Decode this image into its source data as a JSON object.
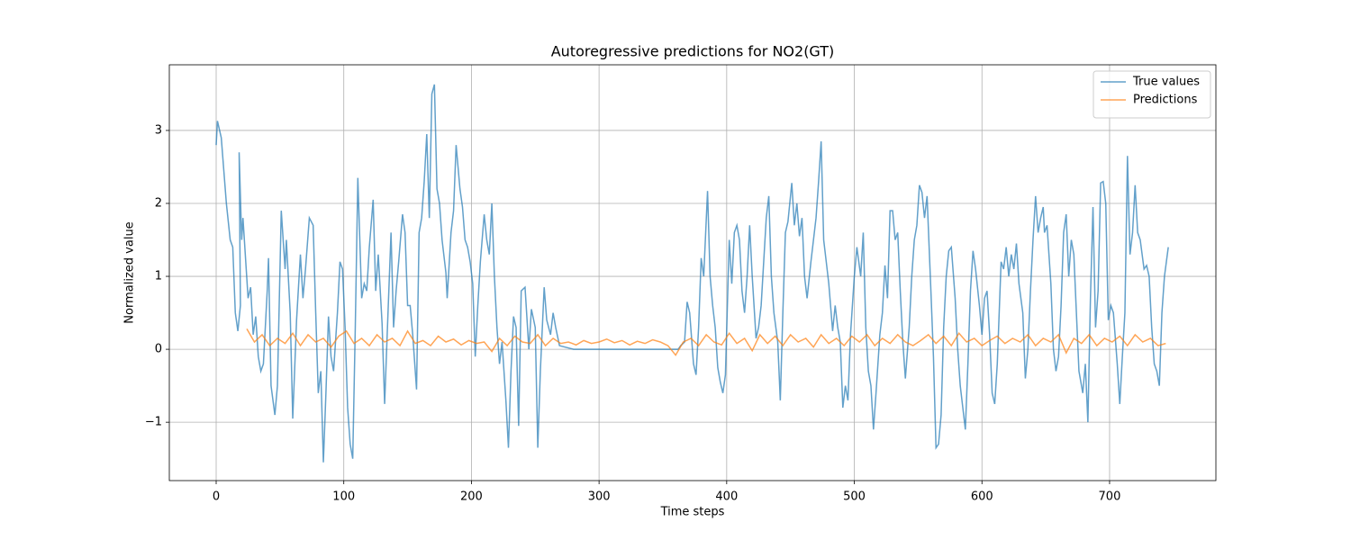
{
  "chart_data": {
    "type": "line",
    "title": "Autoregressive predictions for NO2(GT)",
    "x_label": "Time steps",
    "y_label": "Normalized value",
    "xlim": [
      -36.7,
      783.3
    ],
    "ylim": [
      -1.8,
      3.9
    ],
    "xticks": [
      0,
      100,
      200,
      300,
      400,
      500,
      600,
      700
    ],
    "yticks": [
      {
        "value": -1,
        "label": "−1"
      },
      0,
      1,
      2,
      3
    ],
    "grid": true,
    "legend": "upper right",
    "series": [
      {
        "name": "True values",
        "color": "#1f77b4",
        "x": [
          0,
          1,
          4,
          8,
          11,
          13,
          15,
          17,
          19,
          18,
          20,
          21,
          25,
          27,
          29,
          31,
          33,
          35,
          37,
          40,
          41,
          43,
          46,
          48,
          51,
          54,
          55,
          58,
          60,
          63,
          66,
          68,
          70,
          73,
          76,
          78,
          80,
          82,
          84,
          86,
          88,
          90,
          92,
          95,
          97,
          99,
          101,
          103,
          105,
          107,
          109,
          111,
          114,
          116,
          118,
          120,
          123,
          125,
          127,
          130,
          132,
          134,
          137,
          139,
          141,
          143,
          146,
          148,
          150,
          152,
          154,
          157,
          159,
          161,
          163,
          165,
          167,
          169,
          171,
          173,
          175,
          177,
          180,
          181,
          184,
          186,
          188,
          191,
          193,
          195,
          197,
          199,
          201,
          203,
          205,
          207,
          210,
          212,
          214,
          216,
          218,
          220,
          222,
          224,
          227,
          229,
          231,
          233,
          235,
          237,
          239,
          242,
          245,
          247,
          250,
          252,
          254,
          257,
          259,
          262,
          264,
          266,
          269,
          280,
          300,
          320,
          340,
          362,
          364,
          367,
          369,
          371,
          374,
          376,
          378,
          380,
          382,
          385,
          387,
          389,
          391,
          393,
          395,
          397,
          399,
          402,
          404,
          406,
          408,
          410,
          412,
          414,
          416,
          418,
          420,
          423,
          425,
          427,
          429,
          431,
          433,
          435,
          437,
          440,
          442,
          444,
          446,
          448,
          451,
          453,
          455,
          457,
          459,
          461,
          463,
          466,
          468,
          470,
          472,
          474,
          476,
          478,
          480,
          483,
          485,
          487,
          489,
          491,
          493,
          495,
          497,
          500,
          502,
          505,
          507,
          509,
          511,
          513,
          515,
          517,
          520,
          522,
          524,
          526,
          528,
          530,
          532,
          534,
          536,
          538,
          540,
          543,
          545,
          547,
          549,
          551,
          553,
          555,
          557,
          560,
          562,
          564,
          566,
          568,
          570,
          572,
          574,
          576,
          579,
          581,
          583,
          585,
          587,
          589,
          591,
          593,
          595,
          598,
          600,
          602,
          604,
          606,
          608,
          610,
          612,
          615,
          617,
          619,
          621,
          623,
          625,
          627,
          629,
          632,
          634,
          636,
          638,
          640,
          642,
          644,
          646,
          648,
          649,
          651,
          654,
          656,
          658,
          660,
          662,
          664,
          666,
          668,
          670,
          672,
          674,
          676,
          679,
          681,
          683,
          685,
          687,
          689,
          691,
          693,
          695,
          697,
          699,
          701,
          703,
          706,
          708,
          710,
          712,
          714,
          716,
          718,
          720,
          722,
          724,
          727,
          729,
          731,
          733,
          735,
          737,
          739,
          741,
          743,
          746
        ],
        "values": [
          2.8,
          3.13,
          2.9,
          2.0,
          1.5,
          1.4,
          0.5,
          0.25,
          0.6,
          2.7,
          1.5,
          1.8,
          0.7,
          0.85,
          0.2,
          0.45,
          -0.1,
          -0.3,
          -0.2,
          0.8,
          1.25,
          -0.5,
          -0.9,
          -0.5,
          1.9,
          1.1,
          1.5,
          0.5,
          -0.95,
          0.4,
          1.3,
          0.7,
          1.1,
          1.8,
          1.7,
          0.5,
          -0.6,
          -0.3,
          -1.55,
          -0.6,
          0.45,
          -0.1,
          -0.3,
          0.5,
          1.2,
          1.1,
          0.3,
          -0.8,
          -1.3,
          -1.5,
          0.3,
          2.35,
          0.7,
          0.9,
          0.8,
          1.4,
          2.05,
          0.8,
          1.3,
          0.35,
          -0.75,
          0.2,
          1.6,
          0.3,
          0.8,
          1.2,
          1.85,
          1.6,
          0.6,
          0.6,
          0.2,
          -0.55,
          1.6,
          1.8,
          2.3,
          2.95,
          1.8,
          3.5,
          3.63,
          2.2,
          2.0,
          1.5,
          1.05,
          0.7,
          1.6,
          1.9,
          2.8,
          2.2,
          1.95,
          1.5,
          1.4,
          1.2,
          0.9,
          -0.1,
          0.6,
          1.2,
          1.85,
          1.5,
          1.3,
          2.0,
          1.0,
          0.3,
          -0.2,
          0.1,
          -0.7,
          -1.35,
          -0.3,
          0.45,
          0.3,
          -1.05,
          0.8,
          0.85,
          0.0,
          0.55,
          0.3,
          -1.35,
          -0.3,
          0.85,
          0.4,
          0.2,
          0.5,
          0.3,
          0.05,
          0.0,
          0.0,
          0.0,
          0.0,
          0.0,
          0.05,
          0.1,
          0.65,
          0.5,
          -0.2,
          -0.35,
          0.3,
          1.25,
          1.0,
          2.17,
          1.0,
          0.6,
          0.3,
          -0.25,
          -0.45,
          -0.6,
          -0.35,
          1.5,
          0.9,
          1.6,
          1.7,
          1.5,
          0.8,
          0.5,
          1.0,
          1.7,
          1.0,
          0.15,
          0.3,
          0.6,
          1.2,
          1.8,
          2.1,
          1.0,
          0.5,
          0.1,
          -0.7,
          0.5,
          1.6,
          1.75,
          2.28,
          1.7,
          2.0,
          1.55,
          1.8,
          1.0,
          0.7,
          1.2,
          1.5,
          1.8,
          2.3,
          2.85,
          1.5,
          1.2,
          0.9,
          0.25,
          0.6,
          0.3,
          0.1,
          -0.8,
          -0.5,
          -0.7,
          0.2,
          1.0,
          1.4,
          1.0,
          1.6,
          0.3,
          -0.3,
          -0.5,
          -1.1,
          -0.6,
          0.2,
          0.5,
          1.15,
          0.7,
          1.9,
          1.9,
          1.5,
          1.6,
          0.8,
          0.1,
          -0.4,
          0.3,
          1.0,
          1.5,
          1.7,
          2.25,
          2.15,
          1.8,
          2.1,
          0.8,
          -0.1,
          -1.35,
          -1.3,
          -0.9,
          0.3,
          1.0,
          1.35,
          1.4,
          0.7,
          0.0,
          -0.5,
          -0.8,
          -1.1,
          -0.2,
          0.8,
          1.35,
          1.1,
          0.6,
          0.2,
          0.7,
          0.8,
          0.2,
          -0.6,
          -0.75,
          -0.2,
          1.2,
          1.1,
          1.4,
          1.0,
          1.3,
          1.1,
          1.45,
          0.9,
          0.5,
          -0.4,
          0.0,
          0.8,
          1.5,
          2.1,
          1.6,
          1.8,
          1.95,
          1.6,
          1.7,
          0.9,
          0.0,
          -0.3,
          -0.1,
          0.6,
          1.6,
          1.85,
          1.0,
          1.5,
          1.3,
          0.5,
          -0.3,
          -0.6,
          -0.2,
          -1.0,
          0.7,
          1.95,
          0.3,
          0.8,
          2.28,
          2.3,
          2.0,
          0.4,
          0.6,
          0.5,
          -0.2,
          -0.75,
          -0.1,
          0.5,
          2.65,
          1.3,
          1.6,
          2.25,
          1.6,
          1.5,
          1.1,
          1.15,
          1.0,
          0.3,
          -0.2,
          -0.3,
          -0.5,
          0.5,
          1.0,
          1.4
        ]
      },
      {
        "name": "Predictions",
        "color": "#ff7f0e",
        "x": [
          24,
          30,
          36,
          42,
          48,
          54,
          60,
          66,
          72,
          78,
          84,
          90,
          96,
          102,
          108,
          114,
          120,
          126,
          132,
          138,
          144,
          150,
          156,
          162,
          168,
          174,
          180,
          186,
          192,
          198,
          204,
          210,
          216,
          222,
          228,
          234,
          240,
          246,
          252,
          258,
          264,
          270,
          276,
          282,
          288,
          294,
          300,
          306,
          312,
          318,
          324,
          330,
          336,
          342,
          348,
          354,
          360,
          366,
          372,
          378,
          384,
          390,
          396,
          402,
          408,
          414,
          420,
          426,
          432,
          438,
          444,
          450,
          456,
          462,
          468,
          474,
          480,
          486,
          492,
          498,
          504,
          510,
          516,
          522,
          528,
          534,
          540,
          546,
          552,
          558,
          564,
          570,
          576,
          582,
          588,
          594,
          600,
          606,
          612,
          618,
          624,
          630,
          636,
          642,
          648,
          654,
          660,
          666,
          672,
          678,
          684,
          690,
          696,
          702,
          708,
          714,
          720,
          726,
          732,
          738,
          744
        ],
        "values": [
          0.28,
          0.1,
          0.2,
          0.05,
          0.15,
          0.08,
          0.22,
          0.05,
          0.2,
          0.1,
          0.15,
          0.03,
          0.18,
          0.25,
          0.08,
          0.15,
          0.05,
          0.2,
          0.1,
          0.15,
          0.05,
          0.25,
          0.08,
          0.12,
          0.05,
          0.18,
          0.1,
          0.14,
          0.06,
          0.12,
          0.08,
          0.1,
          -0.03,
          0.15,
          0.05,
          0.18,
          0.1,
          0.08,
          0.2,
          0.05,
          0.15,
          0.08,
          0.1,
          0.06,
          0.12,
          0.08,
          0.1,
          0.14,
          0.09,
          0.12,
          0.06,
          0.11,
          0.08,
          0.13,
          0.1,
          0.05,
          -0.08,
          0.1,
          0.15,
          0.05,
          0.2,
          0.1,
          0.06,
          0.22,
          0.08,
          0.15,
          -0.02,
          0.2,
          0.08,
          0.18,
          0.05,
          0.2,
          0.1,
          0.15,
          0.03,
          0.2,
          0.08,
          0.15,
          0.05,
          0.18,
          0.1,
          0.2,
          0.05,
          0.15,
          0.08,
          0.2,
          0.1,
          0.05,
          0.12,
          0.2,
          0.08,
          0.18,
          0.05,
          0.22,
          0.1,
          0.15,
          0.05,
          0.12,
          0.18,
          0.08,
          0.15,
          0.1,
          0.2,
          0.05,
          0.15,
          0.1,
          0.2,
          -0.05,
          0.15,
          0.08,
          0.2,
          0.05,
          0.15,
          0.1,
          0.18,
          0.05,
          0.2,
          0.1,
          0.15,
          0.05,
          0.08
        ]
      }
    ]
  }
}
